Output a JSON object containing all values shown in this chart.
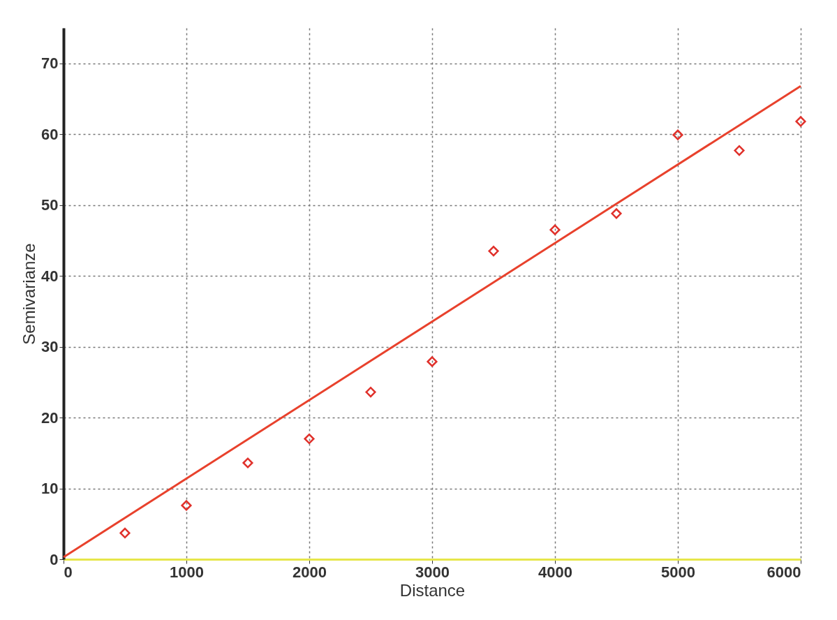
{
  "chart_data": {
    "type": "scatter",
    "xlabel": "Distance",
    "ylabel": "Semivarianze",
    "series": [
      {
        "color": "#e0302a",
        "marker": "diamond",
        "x": [
          500,
          1000,
          1500,
          2000,
          2500,
          3000,
          3500,
          4000,
          4500,
          5000,
          5500,
          6000
        ],
        "values": [
          3.7,
          7.6,
          13.6,
          17.0,
          23.6,
          27.9,
          43.5,
          46.5,
          48.8,
          59.9,
          57.7,
          61.8
        ]
      },
      {
        "type": "line",
        "color": "#e8412c",
        "x": [
          0,
          6000
        ],
        "values": [
          0.3,
          66.8
        ]
      }
    ],
    "xlim": [
      0,
      6000
    ],
    "ylim": [
      0,
      75
    ],
    "xticks": [
      0,
      1000,
      2000,
      3000,
      4000,
      5000,
      6000
    ],
    "yticks": [
      0,
      10,
      20,
      30,
      40,
      50,
      60,
      70
    ],
    "grid": true
  }
}
